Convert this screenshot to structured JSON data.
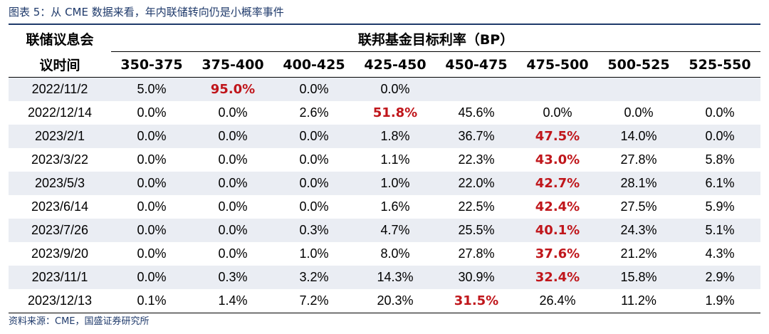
{
  "caption": "图表 5：从 CME 数据来看，年内联储转向仍是小概率事件",
  "table": {
    "date_header_line1": "联储议息会",
    "date_header_line2": "议时间",
    "group_header": "联邦基金目标利率（BP）",
    "columns": [
      "350-375",
      "375-400",
      "400-425",
      "425-450",
      "450-475",
      "475-500",
      "500-525",
      "525-550"
    ],
    "rows": [
      {
        "date": "2022/11/2",
        "cells": [
          "5.0%",
          "95.0%",
          "0.0%",
          "0.0%",
          "",
          "",
          "",
          ""
        ],
        "highlight": 1
      },
      {
        "date": "2022/12/14",
        "cells": [
          "0.0%",
          "0.0%",
          "2.6%",
          "51.8%",
          "45.6%",
          "0.0%",
          "0.0%",
          "0.0%"
        ],
        "highlight": 3
      },
      {
        "date": "2023/2/1",
        "cells": [
          "0.0%",
          "0.0%",
          "0.0%",
          "1.8%",
          "36.7%",
          "47.5%",
          "14.0%",
          "0.0%"
        ],
        "highlight": 5
      },
      {
        "date": "2023/3/22",
        "cells": [
          "0.0%",
          "0.0%",
          "0.0%",
          "1.1%",
          "22.3%",
          "43.0%",
          "27.8%",
          "5.8%"
        ],
        "highlight": 5
      },
      {
        "date": "2023/5/3",
        "cells": [
          "0.0%",
          "0.0%",
          "0.0%",
          "1.0%",
          "22.0%",
          "42.7%",
          "28.1%",
          "6.1%"
        ],
        "highlight": 5
      },
      {
        "date": "2023/6/14",
        "cells": [
          "0.0%",
          "0.0%",
          "0.0%",
          "1.6%",
          "22.5%",
          "42.4%",
          "27.5%",
          "5.9%"
        ],
        "highlight": 5
      },
      {
        "date": "2023/7/26",
        "cells": [
          "0.0%",
          "0.0%",
          "0.3%",
          "4.7%",
          "25.5%",
          "40.1%",
          "24.3%",
          "5.1%"
        ],
        "highlight": 5
      },
      {
        "date": "2023/9/20",
        "cells": [
          "0.0%",
          "0.0%",
          "1.0%",
          "8.0%",
          "27.8%",
          "37.6%",
          "21.2%",
          "4.3%"
        ],
        "highlight": 5
      },
      {
        "date": "2023/11/1",
        "cells": [
          "0.0%",
          "0.3%",
          "3.2%",
          "14.3%",
          "30.9%",
          "32.4%",
          "15.8%",
          "2.9%"
        ],
        "highlight": 5
      },
      {
        "date": "2023/12/13",
        "cells": [
          "0.1%",
          "1.4%",
          "7.2%",
          "20.3%",
          "31.5%",
          "26.4%",
          "11.2%",
          "1.9%"
        ],
        "highlight": 4
      }
    ]
  },
  "source": "资料来源：CME，国盛证券研究所",
  "colors": {
    "caption_blue": "#1f3a6b",
    "highlight_red": "#c0161b",
    "band_gray": "#eaedf3"
  }
}
